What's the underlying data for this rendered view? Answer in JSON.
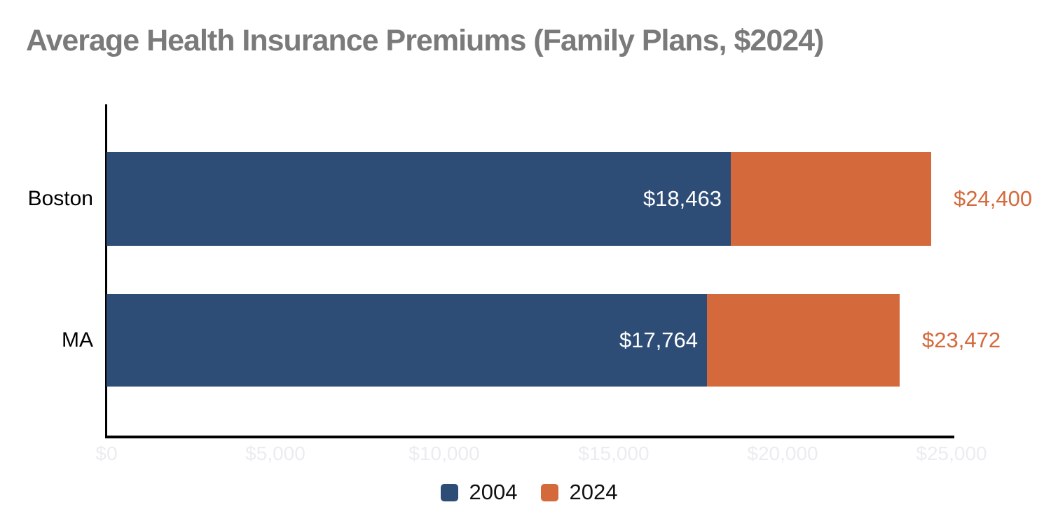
{
  "title": "Average Health Insurance Premiums (Family Plans, $2024)",
  "colors": {
    "series_2004": "#2E4D76",
    "series_2024": "#D4693C",
    "title_gray": "#7A7A7A",
    "tick_gray": "#EBECF0",
    "axis_black": "#000000",
    "inside_label_white": "#FFFFFF",
    "legend_text": "#111111"
  },
  "chart_data": {
    "type": "bar",
    "orientation": "horizontal",
    "bar_mode": "overlay",
    "title": "Average Health Insurance Premiums (Family Plans, $2024)",
    "categories": [
      "Boston",
      "MA"
    ],
    "series": [
      {
        "name": "2004",
        "color": "#2E4D76",
        "values": [
          18463,
          17764
        ],
        "labels": [
          "$18,463",
          "$17,764"
        ]
      },
      {
        "name": "2024",
        "color": "#D4693C",
        "values": [
          24400,
          23472
        ],
        "labels": [
          "$24,400",
          "$23,472"
        ]
      }
    ],
    "xlabel": "",
    "ylabel": "",
    "xlim": [
      0,
      25000
    ],
    "x_tick_values": [
      0,
      5000,
      10000,
      15000,
      20000,
      25000
    ],
    "x_tick_labels": [
      "$0",
      "$5,000",
      "$10,000",
      "$15,000",
      "$20,000",
      "$25,000"
    ],
    "grid": false,
    "legend": {
      "position": "bottom",
      "entries": [
        "2004",
        "2024"
      ]
    }
  }
}
